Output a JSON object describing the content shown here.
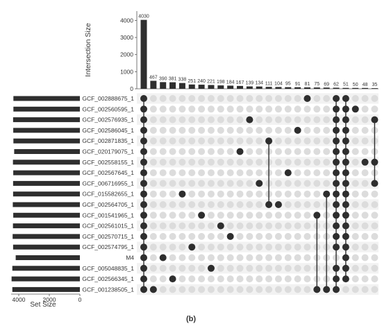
{
  "figure_label": "(b)",
  "chart_data": {
    "type": "upset",
    "intersection_axis_label": "Intersection Size",
    "intersection_axis_ticks": [
      0,
      1000,
      2000,
      3000,
      4000
    ],
    "intersection_axis_range": [
      0,
      4300
    ],
    "set_size_axis_label": "Set Size",
    "set_size_axis_ticks": [
      4000,
      2000,
      0
    ],
    "set_size_axis_range": [
      0,
      4500
    ],
    "sets": [
      "GCF_002888675_1",
      "GCF_002560595_1",
      "GCF_002576935_1",
      "GCF_002586045_1",
      "GCF_002871835_1",
      "GCF_020179075_1",
      "GCF_002558155_1",
      "GCF_002567645_1",
      "GCF_006716955_1",
      "GCF_015582655_1",
      "GCF_002564705_1",
      "GCF_001541965_1",
      "GCF_002561015_1",
      "GCF_002570715_1",
      "GCF_002574795_1",
      "M4",
      "GCF_005048835_1",
      "GCF_002566345_1",
      "GCF_001238505_1"
    ],
    "set_sizes": [
      4350,
      4350,
      4370,
      4360,
      4350,
      4300,
      4380,
      4360,
      4370,
      4370,
      4390,
      4360,
      4380,
      4400,
      4370,
      4200,
      4420,
      4470,
      4420
    ],
    "intersections": [
      {
        "size": 4030,
        "sets": [
          "GCF_002888675_1",
          "GCF_002560595_1",
          "GCF_002576935_1",
          "GCF_002586045_1",
          "GCF_002871835_1",
          "GCF_020179075_1",
          "GCF_002558155_1",
          "GCF_002567645_1",
          "GCF_006716955_1",
          "GCF_015582655_1",
          "GCF_002564705_1",
          "GCF_001541965_1",
          "GCF_002561015_1",
          "GCF_002570715_1",
          "GCF_002574795_1",
          "M4",
          "GCF_005048835_1",
          "GCF_002566345_1",
          "GCF_001238505_1"
        ]
      },
      {
        "size": 467,
        "sets": [
          "GCF_001238505_1"
        ]
      },
      {
        "size": 390,
        "sets": [
          "M4"
        ]
      },
      {
        "size": 381,
        "sets": [
          "GCF_002566345_1"
        ]
      },
      {
        "size": 338,
        "sets": [
          "GCF_015582655_1"
        ]
      },
      {
        "size": 251,
        "sets": [
          "GCF_002574795_1"
        ]
      },
      {
        "size": 240,
        "sets": [
          "GCF_001541965_1"
        ]
      },
      {
        "size": 221,
        "sets": [
          "GCF_005048835_1"
        ]
      },
      {
        "size": 198,
        "sets": [
          "GCF_002561015_1"
        ]
      },
      {
        "size": 184,
        "sets": [
          "GCF_002570715_1"
        ]
      },
      {
        "size": 167,
        "sets": [
          "GCF_020179075_1"
        ]
      },
      {
        "size": 139,
        "sets": [
          "GCF_002576935_1"
        ]
      },
      {
        "size": 134,
        "sets": [
          "GCF_006716955_1"
        ]
      },
      {
        "size": 111,
        "sets": [
          "GCF_002871835_1",
          "GCF_002564705_1"
        ]
      },
      {
        "size": 104,
        "sets": [
          "GCF_002564705_1"
        ]
      },
      {
        "size": 95,
        "sets": [
          "GCF_002567645_1"
        ]
      },
      {
        "size": 91,
        "sets": [
          "GCF_002586045_1"
        ]
      },
      {
        "size": 81,
        "sets": [
          "GCF_002888675_1"
        ]
      },
      {
        "size": 75,
        "sets": [
          "GCF_001541965_1",
          "GCF_001238505_1"
        ]
      },
      {
        "size": 69,
        "sets": [
          "GCF_015582655_1",
          "GCF_001238505_1"
        ]
      },
      {
        "size": 62,
        "sets": [
          "GCF_002888675_1",
          "GCF_002560595_1",
          "GCF_002576935_1",
          "GCF_002586045_1",
          "GCF_002871835_1",
          "GCF_020179075_1",
          "GCF_002558155_1",
          "GCF_002567645_1",
          "GCF_006716955_1",
          "GCF_015582655_1",
          "GCF_002564705_1",
          "GCF_001541965_1",
          "GCF_002561015_1",
          "GCF_002570715_1",
          "GCF_002574795_1",
          "GCF_005048835_1",
          "GCF_002566345_1",
          "GCF_001238505_1"
        ]
      },
      {
        "size": 51,
        "sets": [
          "GCF_002888675_1",
          "GCF_002560595_1",
          "GCF_002576935_1",
          "GCF_002586045_1",
          "GCF_002871835_1",
          "GCF_020179075_1",
          "GCF_002558155_1",
          "GCF_002567645_1",
          "GCF_006716955_1",
          "GCF_015582655_1",
          "GCF_002564705_1",
          "GCF_001541965_1",
          "GCF_002561015_1",
          "GCF_002570715_1",
          "GCF_002574795_1",
          "M4",
          "GCF_005048835_1",
          "GCF_002566345_1"
        ]
      },
      {
        "size": 50,
        "sets": [
          "GCF_002560595_1"
        ]
      },
      {
        "size": 48,
        "sets": [
          "GCF_002558155_1"
        ]
      },
      {
        "size": 35,
        "sets": [
          "GCF_002576935_1",
          "GCF_002558155_1",
          "GCF_006716955_1"
        ]
      }
    ],
    "colors": {
      "bar": "#2e2e2e",
      "dot_active": "#2e2e2e",
      "dot_inactive": "#dcdcdc",
      "stripe": "#f2f2f2",
      "axis": "#555555"
    }
  }
}
